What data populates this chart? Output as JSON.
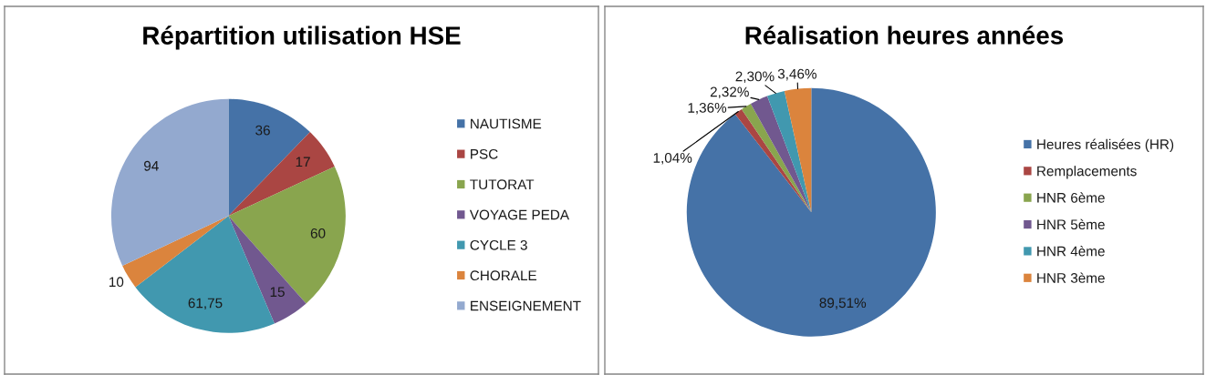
{
  "chart_data": [
    {
      "type": "pie",
      "title": "Répartition utilisation HSE",
      "categories": [
        "NAUTISME",
        "PSC",
        "TUTORAT",
        "VOYAGE PEDA",
        "CYCLE 3",
        "CHORALE",
        "ENSEIGNEMENT"
      ],
      "values": [
        36,
        17,
        60,
        15,
        61.75,
        10,
        94
      ],
      "colors": [
        "#4572a7",
        "#aa4643",
        "#89a54e",
        "#71588f",
        "#4198af",
        "#db843d",
        "#93a9cf"
      ],
      "value_labels": [
        "36",
        "17",
        "60",
        "15",
        "61,75",
        "10",
        "94"
      ],
      "legend": "right"
    },
    {
      "type": "pie",
      "title": "Réalisation heures années",
      "categories": [
        "Heures réalisées (HR)",
        "Remplacements",
        "HNR 6ème",
        "HNR 5ème",
        "HNR 4ème",
        "HNR 3ème"
      ],
      "values": [
        89.51,
        1.04,
        1.36,
        2.32,
        2.3,
        3.46
      ],
      "colors": [
        "#4572a7",
        "#aa4643",
        "#89a54e",
        "#71588f",
        "#4198af",
        "#db843d"
      ],
      "value_labels": [
        "89,51%",
        "1,04%",
        "1,36%",
        "2,32%",
        "2,30%",
        "3,46%"
      ],
      "legend": "right"
    }
  ]
}
